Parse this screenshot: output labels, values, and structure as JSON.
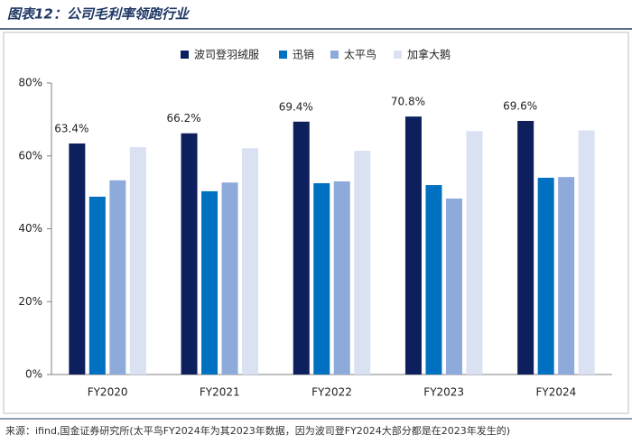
{
  "chart_data": {
    "type": "bar",
    "title": "图表12：公司毛利率领跑行业",
    "categories": [
      "FY2020",
      "FY2021",
      "FY2022",
      "FY2023",
      "FY2024"
    ],
    "series": [
      {
        "name": "波司登羽绒服",
        "color": "#0d1f5c",
        "values": [
          63.4,
          66.2,
          69.4,
          70.8,
          69.6
        ],
        "value_labels": [
          "63.4%",
          "66.2%",
          "69.4%",
          "70.8%",
          "69.6%"
        ]
      },
      {
        "name": "迅销",
        "color": "#0070c0",
        "values": [
          48.8,
          50.3,
          52.5,
          52.0,
          54.0
        ]
      },
      {
        "name": "太平鸟",
        "color": "#8eaadb",
        "values": [
          53.3,
          52.7,
          53.0,
          48.3,
          54.2
        ]
      },
      {
        "name": "加拿大鹅",
        "color": "#d9e1f2",
        "values": [
          62.4,
          62.1,
          61.4,
          66.8,
          67.0
        ]
      }
    ],
    "ylim": [
      0,
      80
    ],
    "yticks": [
      {
        "value": 0,
        "label": "0%"
      },
      {
        "value": 20,
        "label": "20%"
      },
      {
        "value": 40,
        "label": "40%"
      },
      {
        "value": 60,
        "label": "60%"
      },
      {
        "value": 80,
        "label": "80%"
      }
    ],
    "legend": "top",
    "source": "来源：ifind,国金证券研究所(太平鸟FY2024年为其2023年数据，因为波司登FY2024大部分都是在2023年发生的)"
  }
}
